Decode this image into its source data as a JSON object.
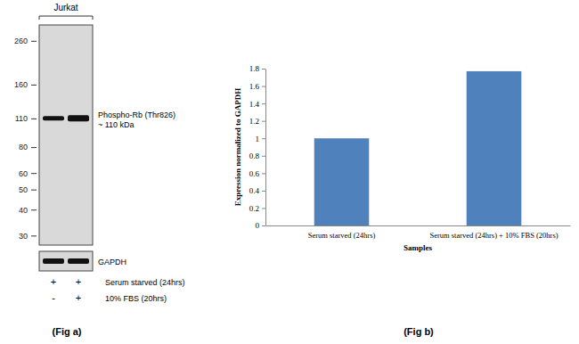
{
  "chart_data": [
    {
      "type": "blot",
      "title": "(Fig a)",
      "sample": "Jurkat",
      "log": "y",
      "ylim": [
        27,
        310
      ],
      "yticks": [
        260,
        160,
        110,
        80,
        60,
        50,
        40,
        30
      ],
      "band": {
        "name": "Phospho-Rb (Thr826)",
        "label": "~ 110 kDa",
        "values": [
          110,
          110
        ]
      },
      "loading_control": "GAPDH",
      "conditions": [
        {
          "name": "Serum starved (24hrs)",
          "values": [
            "+",
            "+"
          ]
        },
        {
          "name": "10% FBS (20hrs)",
          "values": [
            "-",
            "+"
          ]
        }
      ]
    },
    {
      "type": "bar",
      "title": "(Fig b)",
      "categories": [
        "Serum starved (24hrs)",
        "Serum starved (24hrs) + 10% FBS (20hrs)"
      ],
      "values": [
        1,
        1.77
      ],
      "color": "#4f81bd",
      "xlabel": "Samples",
      "ylabel": "Expression  normalized to GAPDH",
      "ylim": [
        0,
        1.8
      ],
      "yticks": [
        0,
        0.2,
        0.4,
        0.6,
        0.8,
        1,
        1.2,
        1.4,
        1.6,
        1.8
      ],
      "grid": false
    }
  ]
}
